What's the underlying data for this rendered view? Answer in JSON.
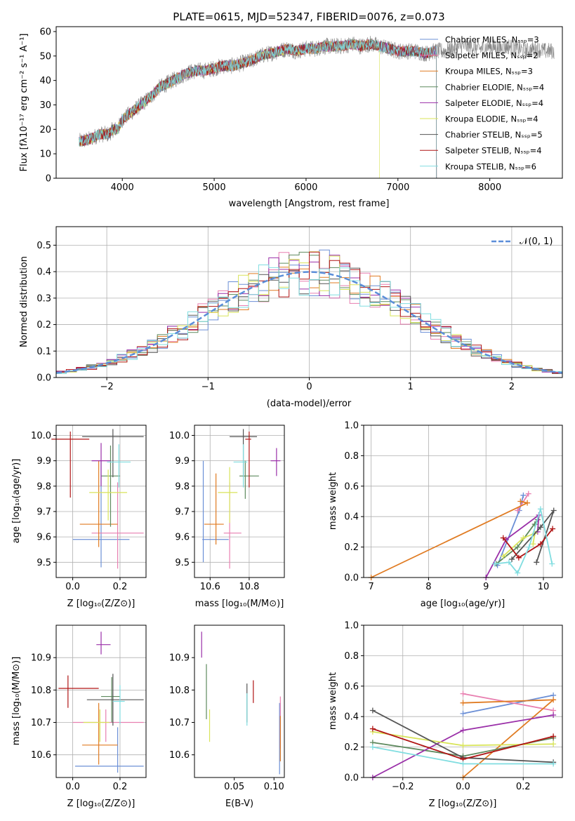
{
  "colors": {
    "c0": "#6b8fd6",
    "c1": "#e87fb0",
    "c2": "#e07b22",
    "c3": "#5e8a5e",
    "c4": "#9a2fa8",
    "c5": "#d8e45a",
    "c6": "#555555",
    "c7": "#b01515",
    "c8": "#80dde0",
    "grid": "#b0b0b0",
    "gauss": "#5b8ed9"
  },
  "chart_data": [
    {
      "type": "line",
      "panel": "spectrum",
      "title": "PLATE=0615, MJD=52347, FIBERID=0076, z=0.073",
      "xlabel": "wavelength [Angstrom, rest frame]",
      "ylabel": "Flux [fλ10⁻¹⁷ erg cm⁻² s⁻¹ A⁻¹]",
      "xlim": [
        3280,
        8790
      ],
      "ylim": [
        0,
        62
      ],
      "xticks": [
        "4000",
        "5000",
        "6000",
        "7000",
        "8000"
      ],
      "yticks": [
        "0",
        "10",
        "20",
        "30",
        "40",
        "50",
        "60"
      ],
      "grid": false,
      "legend_position": "top-right",
      "legend": [
        "Chabrier MILES, Nₛₛₚ=3",
        "Salpeter MILES, Nₛₛₚ=2",
        "Kroupa MILES, Nₛₛₚ=3",
        "Chabrier ELODIE, Nₛₛₚ=4",
        "Salpeter ELODIE, Nₛₛₚ=4",
        "Kroupa ELODIE, Nₛₛₚ=4",
        "Chabrier STELIB, Nₛₛₚ=5",
        "Salpeter STELIB, Nₛₛₚ=4",
        "Kroupa STELIB, Nₛₛₚ=6"
      ],
      "observed_spectrum": {
        "x": [
          3530,
          3650,
          3750,
          3850,
          3900,
          3950,
          4000,
          4100,
          4200,
          4300,
          4400,
          4500,
          4600,
          4700,
          4800,
          4900,
          5000,
          5100,
          5200,
          5300,
          5400,
          5500,
          5600,
          5700,
          5800,
          5900,
          6000,
          6100,
          6200,
          6300,
          6400,
          6500,
          6600,
          6700,
          6800,
          6900,
          7000,
          7100,
          7200,
          7300,
          7400,
          7500,
          7600,
          7700,
          7800,
          7900,
          8000,
          8100,
          8200,
          8300,
          8400,
          8500,
          8600,
          8700
        ],
        "y": [
          15,
          16,
          18,
          18,
          20,
          20,
          24,
          27,
          30,
          33,
          37,
          39,
          41,
          43,
          44,
          44,
          45,
          46,
          46,
          47,
          48,
          50,
          51,
          52,
          53,
          52,
          53,
          53,
          54,
          54,
          54,
          55,
          54,
          55,
          54,
          53,
          52,
          52,
          52,
          51,
          52,
          52,
          53,
          54,
          54,
          53,
          54,
          53,
          54,
          53,
          52,
          53,
          52,
          52
        ]
      },
      "model_spectrum": {
        "x": [
          3530,
          3650,
          3750,
          3850,
          3900,
          3950,
          4000,
          4100,
          4200,
          4300,
          4400,
          4500,
          4600,
          4700,
          4800,
          4900,
          5000,
          5100,
          5200,
          5300,
          5400,
          5500,
          5600,
          5700,
          5800,
          5900,
          6000,
          6100,
          6200,
          6300,
          6400,
          6500,
          6600,
          6700,
          6800,
          6900,
          7000,
          7100,
          7200,
          7300,
          7400
        ],
        "y": [
          15,
          16,
          18,
          18,
          20,
          20,
          24,
          27,
          30,
          33,
          37,
          39,
          41,
          43,
          44,
          44,
          45,
          46,
          46,
          47,
          48,
          50,
          51,
          52,
          53,
          52,
          53,
          53,
          54,
          54,
          54,
          55,
          54,
          55,
          54,
          53,
          52,
          52,
          52,
          51,
          52
        ]
      }
    },
    {
      "type": "line",
      "panel": "residual_histogram",
      "xlabel": "(data-model)/error",
      "ylabel": "Normed distribution",
      "xlim": [
        -2.5,
        2.5
      ],
      "ylim": [
        0,
        0.57
      ],
      "xticks": [
        "−2",
        "−1",
        "0",
        "1",
        "2"
      ],
      "yticks": [
        "0.0",
        "0.1",
        "0.2",
        "0.3",
        "0.4",
        "0.5"
      ],
      "grid": true,
      "legend_position": "top-right",
      "legend": [
        "𝒩(0, 1)"
      ],
      "bin_width": 0.1,
      "gaussian": {
        "mu": 0,
        "sigma": 1
      }
    },
    {
      "type": "scatter",
      "panel": "age_vs_Z",
      "xlabel": "Z [log₁₀(Z/Z⊙)]",
      "ylabel": "age  [log₁₀(age/yr)]",
      "xlim": [
        -0.07,
        0.31
      ],
      "ylim": [
        9.44,
        10.04
      ],
      "xticks": [
        "0.0",
        "0.2"
      ],
      "yticks": [
        "9.5",
        "9.6",
        "9.7",
        "9.8",
        "9.9",
        "10.0"
      ],
      "grid": true,
      "points": [
        {
          "x": 0.12,
          "y": 9.59,
          "xerr": 0.12,
          "yerr_lo": 0.11,
          "yerr_hi": 0.31,
          "color": "c0"
        },
        {
          "x": 0.19,
          "y": 9.615,
          "xerr": 0.11,
          "yerr_lo": 0.14,
          "yerr_hi": 0.2,
          "color": "c1"
        },
        {
          "x": 0.11,
          "y": 9.65,
          "xerr": 0.08,
          "yerr_lo": 0.09,
          "yerr_hi": 0.25,
          "color": "c2"
        },
        {
          "x": 0.16,
          "y": 9.84,
          "xerr": 0.04,
          "yerr_lo": 0.2,
          "yerr_hi": 0.12,
          "color": "c3"
        },
        {
          "x": 0.12,
          "y": 9.9,
          "xerr": 0.04,
          "yerr_lo": 0.1,
          "yerr_hi": 0.07,
          "color": "c4"
        },
        {
          "x": 0.15,
          "y": 9.775,
          "xerr": 0.08,
          "yerr_lo": 0.11,
          "yerr_hi": 0.09,
          "color": "c5"
        },
        {
          "x": 0.17,
          "y": 9.995,
          "xerr": 0.13,
          "yerr_lo": 0.16,
          "yerr_hi": 0.03,
          "color": "c6"
        },
        {
          "x": -0.01,
          "y": 9.985,
          "xerr": 0.08,
          "yerr_lo": 0.23,
          "yerr_hi": 0.03,
          "color": "c7"
        },
        {
          "x": 0.195,
          "y": 9.895,
          "xerr": 0.05,
          "yerr_lo": 0.1,
          "yerr_hi": 0.07,
          "color": "c8"
        }
      ]
    },
    {
      "type": "scatter",
      "panel": "age_vs_mass",
      "xlabel": "mass [log₁₀(M/M⊙)]",
      "ylabel": "",
      "xlim": [
        10.52,
        10.98
      ],
      "ylim": [
        9.44,
        10.04
      ],
      "xticks": [
        "10.6",
        "10.8"
      ],
      "yticks": [
        "9.5",
        "9.6",
        "9.7",
        "9.8",
        "9.9",
        "10.0"
      ],
      "grid": true,
      "points": [
        {
          "x": 10.565,
          "y": 9.59,
          "xerr_lo": 0.005,
          "xerr_hi": 0.13,
          "yerr_lo": 0.09,
          "yerr_hi": 0.31,
          "color": "c0"
        },
        {
          "x": 10.7,
          "y": 9.615,
          "xerr_lo": 0.03,
          "xerr_hi": 0.06,
          "yerr_lo": 0.14,
          "yerr_hi": 0.2,
          "color": "c1"
        },
        {
          "x": 10.63,
          "y": 9.65,
          "xerr_lo": 0.06,
          "xerr_hi": 0.04,
          "yerr_lo": 0.08,
          "yerr_hi": 0.2,
          "color": "c2"
        },
        {
          "x": 10.78,
          "y": 9.84,
          "xerr_lo": 0.03,
          "xerr_hi": 0.07,
          "yerr_lo": 0.09,
          "yerr_hi": 0.06,
          "color": "c3"
        },
        {
          "x": 10.94,
          "y": 9.9,
          "xerr_lo": 0.03,
          "xerr_hi": 0.02,
          "yerr_lo": 0.06,
          "yerr_hi": 0.05,
          "color": "c4"
        },
        {
          "x": 10.7,
          "y": 9.775,
          "xerr_lo": 0.06,
          "xerr_hi": 0.04,
          "yerr_lo": 0.12,
          "yerr_hi": 0.1,
          "color": "c5"
        },
        {
          "x": 10.77,
          "y": 9.995,
          "xerr_lo": 0.07,
          "xerr_hi": 0.07,
          "yerr_lo": 0.16,
          "yerr_hi": 0.03,
          "color": "c6"
        },
        {
          "x": 10.8,
          "y": 9.985,
          "xerr_lo": 0.02,
          "xerr_hi": 0.01,
          "yerr_lo": 0.19,
          "yerr_hi": 0.03,
          "color": "c7"
        },
        {
          "x": 10.77,
          "y": 9.895,
          "xerr_lo": 0.05,
          "xerr_hi": 0.02,
          "yerr_lo": 0.1,
          "yerr_hi": 0.07,
          "color": "c8"
        }
      ]
    },
    {
      "type": "line",
      "panel": "mass_weight_vs_age",
      "xlabel": "age  [log₁₀(age/yr)]",
      "ylabel": "mass weight",
      "xlim": [
        6.87,
        10.33
      ],
      "ylim": [
        0,
        1
      ],
      "xticks": [
        "7",
        "8",
        "9",
        "10"
      ],
      "yticks": [
        "0.0",
        "0.2",
        "0.4",
        "0.6",
        "0.8",
        "1.0"
      ],
      "grid": true,
      "series": [
        {
          "color": "c0",
          "x": [
            9.2,
            9.58,
            9.65
          ],
          "y": [
            0.08,
            0.44,
            0.54
          ]
        },
        {
          "color": "c1",
          "x": [
            9.55,
            9.74
          ],
          "y": [
            0.44,
            0.55
          ]
        },
        {
          "color": "c2",
          "x": [
            7.0,
            9.72,
            9.6
          ],
          "y": [
            0.0,
            0.49,
            0.5
          ]
        },
        {
          "color": "c3",
          "x": [
            9.18,
            9.55,
            9.9,
            9.85
          ],
          "y": [
            0.09,
            0.2,
            0.38,
            0.35
          ]
        },
        {
          "color": "c4",
          "x": [
            9.0,
            9.35,
            9.92,
            9.9
          ],
          "y": [
            0.0,
            0.25,
            0.41,
            0.3
          ]
        },
        {
          "color": "c5",
          "x": [
            9.3,
            9.65,
            9.85,
            9.82
          ],
          "y": [
            0.14,
            0.26,
            0.29,
            0.22
          ]
        },
        {
          "color": "c6",
          "x": [
            9.45,
            9.95,
            10.18,
            9.88
          ],
          "y": [
            0.12,
            0.33,
            0.44,
            0.1
          ]
        },
        {
          "color": "c7",
          "x": [
            9.3,
            9.57,
            9.95,
            10.16
          ],
          "y": [
            0.26,
            0.13,
            0.22,
            0.32
          ]
        },
        {
          "color": "c8",
          "x": [
            9.15,
            9.4,
            9.55,
            9.75,
            9.95,
            10.15
          ],
          "y": [
            0.09,
            0.1,
            0.03,
            0.2,
            0.45,
            0.09
          ]
        }
      ]
    },
    {
      "type": "scatter",
      "panel": "mass_vs_Z",
      "xlabel": "Z [log₁₀(Z/Z⊙)]",
      "ylabel": "mass [log₁₀(M/M⊙)]",
      "xlim": [
        -0.07,
        0.31
      ],
      "ylim": [
        10.53,
        11.0
      ],
      "xticks": [
        "0.0",
        "0.2"
      ],
      "yticks": [
        "10.6",
        "10.7",
        "10.8",
        "10.9"
      ],
      "grid": true,
      "points": [
        {
          "x": 0.19,
          "y": 10.565,
          "xerr_lo": 0.18,
          "xerr_hi": 0.11,
          "yerr_lo": 0.02,
          "yerr_hi": 0.12,
          "color": "c0"
        },
        {
          "x": 0.14,
          "y": 10.7,
          "xerr_lo": 0.14,
          "xerr_hi": 0.16,
          "yerr_lo": 0.06,
          "yerr_hi": 0.04,
          "color": "c1"
        },
        {
          "x": 0.11,
          "y": 10.63,
          "xerr_lo": 0.07,
          "xerr_hi": 0.08,
          "yerr_lo": 0.06,
          "yerr_hi": 0.13,
          "color": "c2"
        },
        {
          "x": 0.165,
          "y": 10.78,
          "xerr_lo": 0.045,
          "xerr_hi": 0.035,
          "yerr_lo": 0.08,
          "yerr_hi": 0.06,
          "color": "c3"
        },
        {
          "x": 0.12,
          "y": 10.94,
          "xerr_lo": 0.02,
          "xerr_hi": 0.04,
          "yerr_lo": 0.03,
          "yerr_hi": 0.04,
          "color": "c4"
        },
        {
          "x": 0.115,
          "y": 10.7,
          "xerr_lo": 0.07,
          "xerr_hi": 0.04,
          "yerr_lo": 0.06,
          "yerr_hi": 0.04,
          "color": "c5"
        },
        {
          "x": 0.17,
          "y": 10.77,
          "xerr_lo": 0.11,
          "xerr_hi": 0.13,
          "yerr_lo": 0.08,
          "yerr_hi": 0.08,
          "color": "c6"
        },
        {
          "x": -0.02,
          "y": 10.805,
          "xerr_lo": 0.04,
          "xerr_hi": 0.13,
          "yerr_lo": 0.06,
          "yerr_hi": 0.04,
          "color": "c7"
        },
        {
          "x": 0.2,
          "y": 10.765,
          "xerr_lo": 0.03,
          "xerr_hi": 0.02,
          "yerr_lo": 0.07,
          "yerr_hi": 0.05,
          "color": "c8"
        }
      ]
    },
    {
      "type": "scatter",
      "panel": "mass_vs_EBV",
      "xlabel": "E(B-V)",
      "ylabel": "",
      "xlim": [
        0.0,
        0.113
      ],
      "ylim": [
        10.53,
        11.0
      ],
      "xticks": [
        "0.05",
        "0.10"
      ],
      "yticks": [
        "10.6",
        "10.7",
        "10.8",
        "10.9"
      ],
      "grid": false,
      "points": [
        {
          "x": 0.107,
          "y": 10.56,
          "yerr_lo": 0.02,
          "yerr_hi": 0.2,
          "color": "c0"
        },
        {
          "x": 0.108,
          "y": 10.7,
          "yerr_lo": 0.08,
          "yerr_hi": 0.08,
          "color": "c1"
        },
        {
          "x": 0.108,
          "y": 10.63,
          "yerr_lo": 0.05,
          "yerr_hi": 0.09,
          "color": "c2"
        },
        {
          "x": 0.015,
          "y": 10.78,
          "yerr_lo": 0.07,
          "yerr_hi": 0.1,
          "color": "c3"
        },
        {
          "x": 0.009,
          "y": 10.94,
          "yerr_lo": 0.04,
          "yerr_hi": 0.04,
          "color": "c4"
        },
        {
          "x": 0.019,
          "y": 10.7,
          "yerr_lo": 0.06,
          "yerr_hi": 0.04,
          "color": "c5"
        },
        {
          "x": 0.066,
          "y": 10.77,
          "yerr_lo": 0.07,
          "yerr_hi": 0.05,
          "color": "c6"
        },
        {
          "x": 0.074,
          "y": 10.8,
          "yerr_lo": 0.04,
          "yerr_hi": 0.03,
          "color": "c7"
        },
        {
          "x": 0.066,
          "y": 10.76,
          "yerr_lo": 0.07,
          "yerr_hi": 0.03,
          "color": "c8"
        }
      ]
    },
    {
      "type": "line",
      "panel": "mass_weight_vs_Z",
      "xlabel": "Z [log₁₀(Z/Z⊙)]",
      "ylabel": "mass weight",
      "xlim": [
        -0.33,
        0.33
      ],
      "ylim": [
        0,
        1
      ],
      "xticks": [
        "−0.2",
        "0.0",
        "0.2"
      ],
      "yticks": [
        "0.0",
        "0.2",
        "0.4",
        "0.6",
        "0.8",
        "1.0"
      ],
      "grid": true,
      "series": [
        {
          "color": "c0",
          "x": [
            0.0,
            0.3
          ],
          "y": [
            0.42,
            0.54
          ]
        },
        {
          "color": "c1",
          "x": [
            0.0,
            0.3
          ],
          "y": [
            0.55,
            0.44
          ]
        },
        {
          "color": "c2",
          "x": [
            0.0,
            0.3,
            0.0
          ],
          "y": [
            0.0,
            0.51,
            0.49
          ]
        },
        {
          "color": "c3",
          "x": [
            -0.3,
            0.0,
            0.3
          ],
          "y": [
            0.23,
            0.14,
            0.26
          ]
        },
        {
          "color": "c4",
          "x": [
            -0.3,
            0.0,
            0.3
          ],
          "y": [
            0.0,
            0.31,
            0.41
          ]
        },
        {
          "color": "c5",
          "x": [
            -0.3,
            0.0,
            0.3
          ],
          "y": [
            0.3,
            0.21,
            0.22
          ]
        },
        {
          "color": "c6",
          "x": [
            -0.3,
            0.0,
            0.3
          ],
          "y": [
            0.44,
            0.13,
            0.1
          ]
        },
        {
          "color": "c7",
          "x": [
            -0.3,
            0.0,
            0.3
          ],
          "y": [
            0.32,
            0.12,
            0.27
          ]
        },
        {
          "color": "c8",
          "x": [
            -0.3,
            0.0,
            0.3
          ],
          "y": [
            0.2,
            0.09,
            0.09
          ]
        }
      ]
    }
  ]
}
